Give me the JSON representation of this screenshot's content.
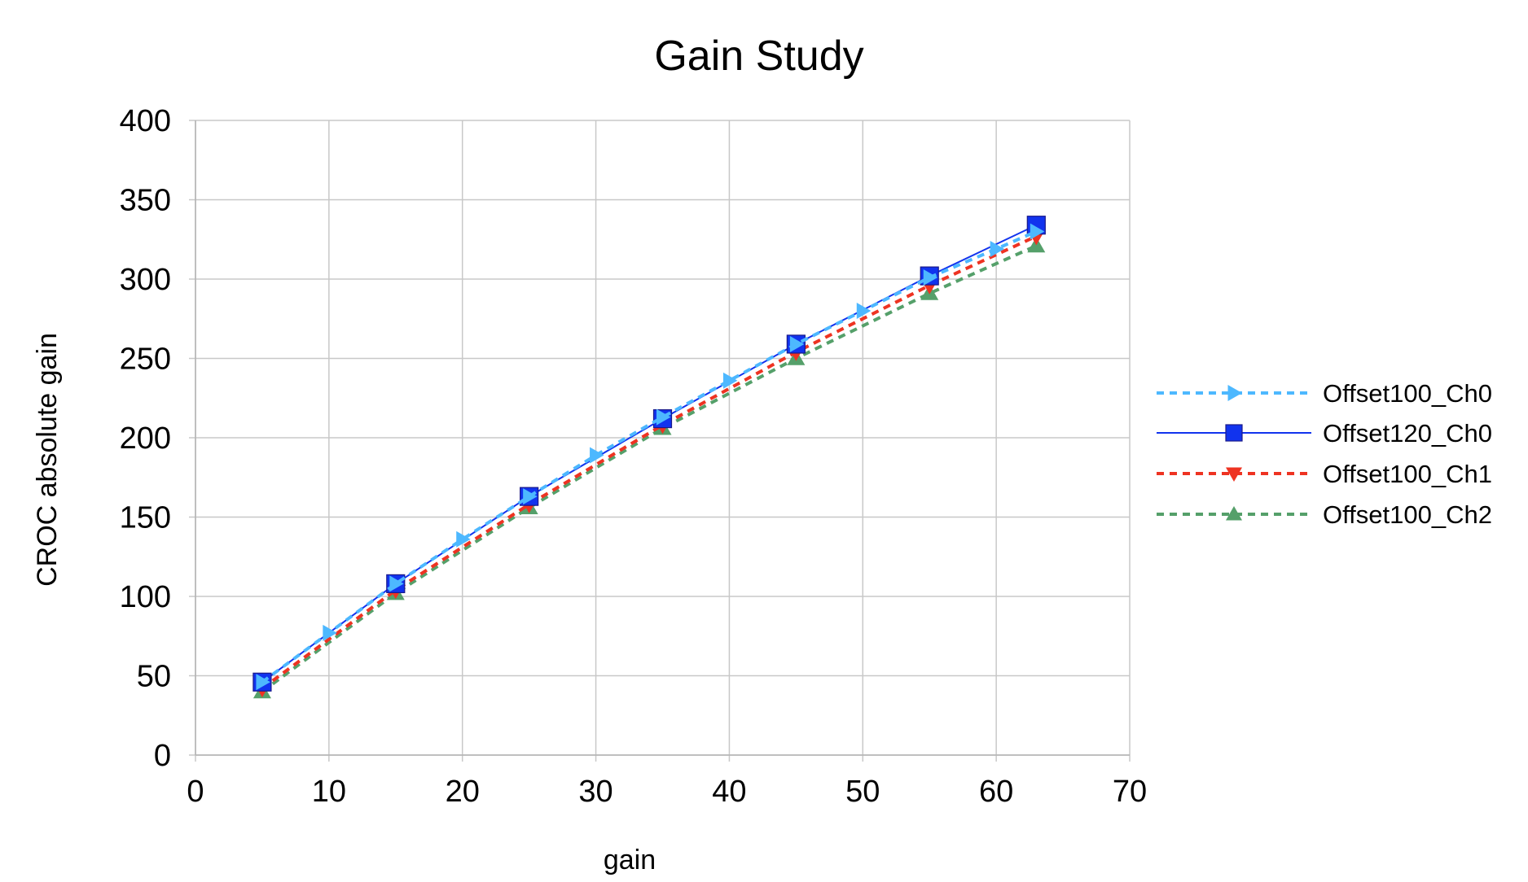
{
  "chart_data": {
    "type": "line",
    "title": "Gain Study",
    "xlabel": "gain",
    "ylabel": "CROC absolute gain",
    "xlim": [
      0,
      70
    ],
    "ylim": [
      0,
      400
    ],
    "x_ticks": [
      0,
      10,
      20,
      30,
      40,
      50,
      60,
      70
    ],
    "y_ticks": [
      0,
      50,
      100,
      150,
      200,
      250,
      300,
      350,
      400
    ],
    "grid": true,
    "legend_position": "right",
    "series": [
      {
        "name": "Offset100_Ch0",
        "color": "#4db8ff",
        "line_style": "dashed",
        "marker": "triangle-right",
        "x": [
          5,
          10,
          15,
          20,
          25,
          30,
          35,
          40,
          45,
          50,
          55,
          60,
          63
        ],
        "y": [
          46,
          77,
          108,
          136,
          163,
          189,
          213,
          236,
          259,
          280,
          301,
          319,
          330
        ]
      },
      {
        "name": "Offset120_Ch0",
        "color": "#1133ee",
        "line_style": "solid",
        "marker": "square",
        "x": [
          5,
          15,
          25,
          35,
          45,
          55,
          63
        ],
        "y": [
          46,
          108,
          163,
          212,
          259,
          302,
          334
        ]
      },
      {
        "name": "Offset100_Ch1",
        "color": "#ee3322",
        "line_style": "dashed",
        "marker": "triangle-down",
        "x": [
          5,
          15,
          25,
          35,
          45,
          55,
          63
        ],
        "y": [
          42,
          104,
          158,
          208,
          254,
          296,
          327
        ]
      },
      {
        "name": "Offset100_Ch2",
        "color": "#55a06a",
        "line_style": "dashed",
        "marker": "triangle-up",
        "x": [
          5,
          15,
          25,
          35,
          45,
          55,
          63
        ],
        "y": [
          40,
          102,
          156,
          206,
          250,
          291,
          321
        ]
      }
    ]
  }
}
